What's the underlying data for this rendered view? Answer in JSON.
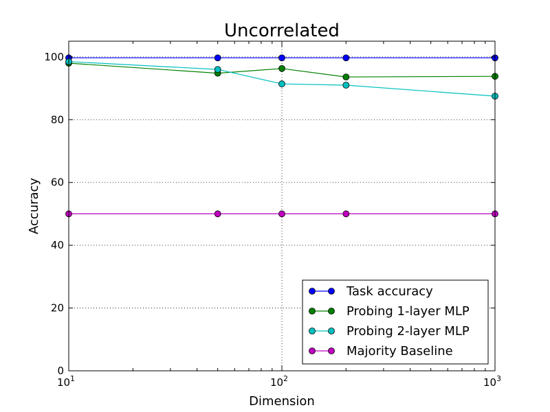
{
  "chart_data": {
    "type": "line",
    "title": "Uncorrelated",
    "xlabel": "Dimension",
    "ylabel": "Accuracy",
    "xscale": "log",
    "xlim": [
      10,
      1000
    ],
    "ylim": [
      0,
      105
    ],
    "x": [
      10,
      50,
      100,
      200,
      1000
    ],
    "xticks": [
      {
        "value": 10,
        "base": "10",
        "exp": "1"
      },
      {
        "value": 100,
        "base": "10",
        "exp": "2"
      },
      {
        "value": 1000,
        "base": "10",
        "exp": "3"
      }
    ],
    "yticks": [
      0,
      20,
      40,
      60,
      80,
      100
    ],
    "grid": true,
    "legend_position": "lower-right",
    "series": [
      {
        "name": "Task accuracy",
        "color": "#0000ff",
        "values": [
          99.7,
          99.7,
          99.7,
          99.7,
          99.7
        ]
      },
      {
        "name": "Probing 1-layer MLP",
        "color": "#008000",
        "values": [
          98.0,
          94.8,
          96.3,
          93.6,
          93.8
        ]
      },
      {
        "name": "Probing 2-layer MLP",
        "color": "#00bfbf",
        "values": [
          98.5,
          96.0,
          91.4,
          91.0,
          87.5
        ]
      },
      {
        "name": "Majority Baseline",
        "color": "#bf00bf",
        "values": [
          50,
          50,
          50,
          50,
          50
        ]
      }
    ]
  }
}
